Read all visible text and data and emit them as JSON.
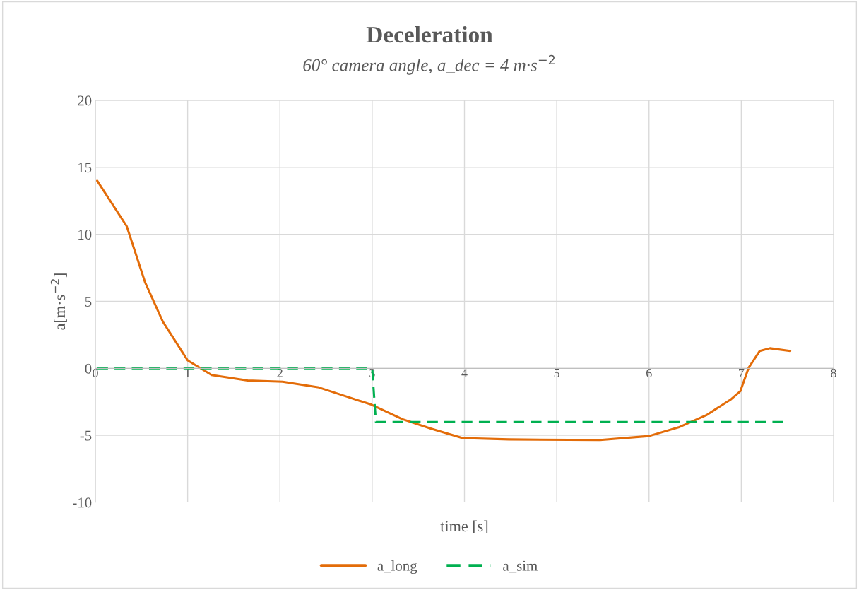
{
  "chart_data": {
    "type": "line",
    "title": "Deceleration",
    "subtitle": "60° camera angle, a_dec = 4 m·s$^{−2}$",
    "xlabel": "time [s]",
    "ylabel": "a[m·s$^{−2}$]",
    "xlim": [
      0,
      8
    ],
    "xticks": [
      0,
      1,
      2,
      3,
      4,
      5,
      6,
      7,
      8
    ],
    "ylim": [
      -10,
      20
    ],
    "yticks": [
      -10,
      -5,
      0,
      5,
      10,
      15,
      20
    ],
    "grid": true,
    "legend": "bottom",
    "series": [
      {
        "name": "a_long",
        "color": "#e36c09",
        "line_style": "solid",
        "x": [
          0.02,
          0.34,
          0.54,
          0.73,
          1.0,
          1.26,
          1.65,
          2.03,
          2.41,
          2.72,
          2.99,
          3.33,
          3.64,
          3.98,
          4.48,
          5.47,
          6.0,
          6.32,
          6.62,
          6.89,
          6.99,
          7.08,
          7.2,
          7.31,
          7.53
        ],
        "values": [
          14.0,
          10.6,
          6.4,
          3.5,
          0.6,
          -0.5,
          -0.9,
          -1.0,
          -1.4,
          -2.1,
          -2.7,
          -3.8,
          -4.5,
          -5.2,
          -5.3,
          -5.35,
          -5.05,
          -4.4,
          -3.5,
          -2.3,
          -1.7,
          0.05,
          1.3,
          1.5,
          1.3
        ]
      },
      {
        "name": "a_sim",
        "color": "#00b050",
        "line_style": "dashed",
        "x": [
          0.02,
          3.0,
          3.04,
          7.47
        ],
        "values": [
          0,
          0,
          -4,
          -4
        ]
      }
    ]
  }
}
